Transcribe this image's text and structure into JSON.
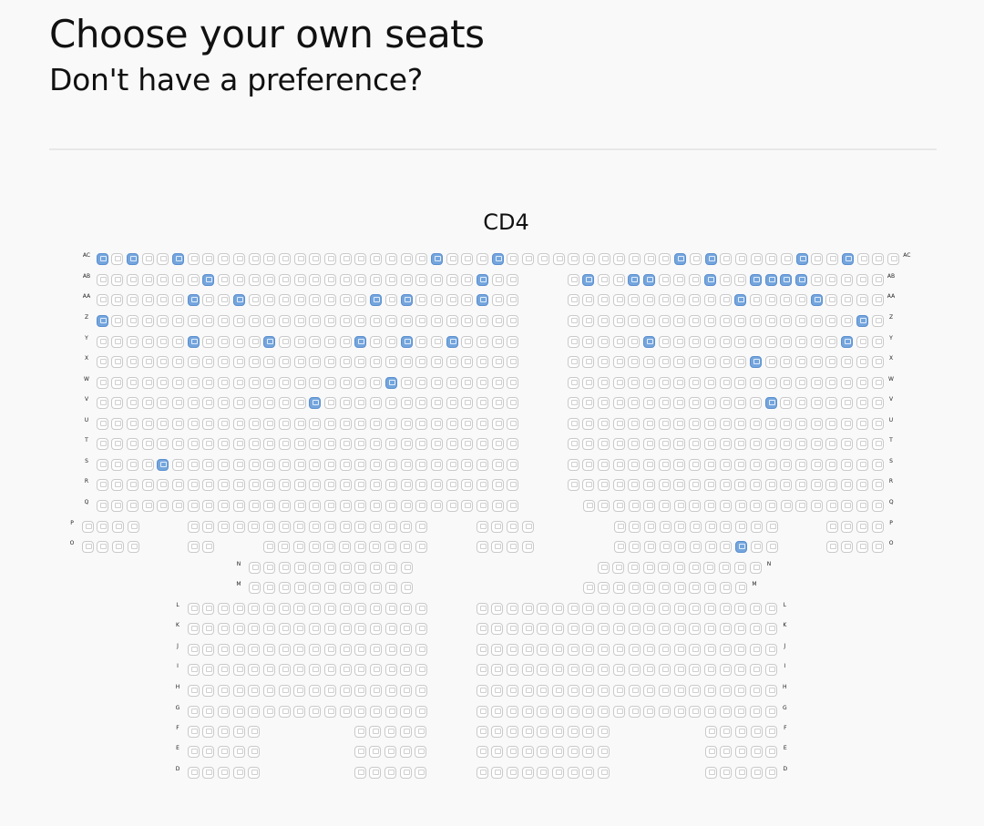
{
  "header": {
    "title": "Choose your own seats",
    "subtitle": "Don't have a preference?"
  },
  "section": {
    "name": "CD4"
  },
  "seat_map": {
    "rows": [
      {
        "label": "AC",
        "y": 284,
        "left": [
          [
            112,
            982
          ]
        ],
        "right": [],
        "avail": [
          112,
          145,
          195,
          479,
          546,
          746,
          780,
          880,
          930
        ]
      },
      {
        "label": "AB",
        "y": 307,
        "left": [
          [
            112,
            563
          ]
        ],
        "right": [
          [
            629,
            965
          ]
        ],
        "avail": [
          229,
          529,
          646,
          696,
          713,
          780,
          830,
          847,
          863,
          880
        ]
      },
      {
        "label": "AA",
        "y": 329,
        "left": [
          [
            112,
            563
          ]
        ],
        "right": [
          [
            629,
            965
          ]
        ],
        "avail": [
          212,
          262,
          412,
          446,
          529,
          813,
          897
        ]
      },
      {
        "label": "Z",
        "y": 352,
        "left": [
          [
            112,
            563
          ]
        ],
        "right": [
          [
            629,
            965
          ]
        ],
        "avail": [
          112,
          947
        ]
      },
      {
        "label": "Y",
        "y": 375,
        "left": [
          [
            112,
            563
          ]
        ],
        "right": [
          [
            629,
            965
          ]
        ],
        "avail": [
          212,
          295,
          395,
          446,
          496,
          713,
          930
        ]
      },
      {
        "label": "X",
        "y": 397,
        "left": [
          [
            112,
            563
          ]
        ],
        "right": [
          [
            629,
            965
          ]
        ],
        "avail": [
          830
        ]
      },
      {
        "label": "W",
        "y": 420,
        "left": [
          [
            112,
            563
          ]
        ],
        "right": [
          [
            629,
            965
          ]
        ],
        "avail": [
          429
        ]
      },
      {
        "label": "V",
        "y": 442,
        "left": [
          [
            112,
            563
          ]
        ],
        "right": [
          [
            629,
            965
          ]
        ],
        "avail": [
          345,
          847
        ]
      },
      {
        "label": "U",
        "y": 465,
        "left": [
          [
            112,
            563
          ]
        ],
        "right": [
          [
            629,
            965
          ]
        ],
        "avail": []
      },
      {
        "label": "T",
        "y": 487,
        "left": [
          [
            112,
            563
          ]
        ],
        "right": [
          [
            629,
            965
          ]
        ],
        "avail": []
      },
      {
        "label": "S",
        "y": 510,
        "left": [
          [
            112,
            563
          ]
        ],
        "right": [
          [
            629,
            965
          ]
        ],
        "avail": [
          179
        ]
      },
      {
        "label": "R",
        "y": 532,
        "left": [
          [
            112,
            563
          ]
        ],
        "right": [
          [
            629,
            965
          ]
        ],
        "avail": []
      },
      {
        "label": "Q",
        "y": 555,
        "left": [
          [
            112,
            563
          ]
        ],
        "right": [
          [
            646,
            965
          ]
        ],
        "avail": []
      },
      {
        "label": "P",
        "y": 578,
        "left": [
          [
            96,
            146
          ],
          [
            212,
            463
          ],
          [
            529,
            579
          ]
        ],
        "right": [
          [
            680,
            847
          ],
          [
            913,
            963
          ]
        ],
        "avail": []
      },
      {
        "label": "O",
        "y": 600,
        "left": [
          [
            96,
            146
          ],
          [
            212,
            229
          ],
          [
            295,
            463
          ],
          [
            529,
            579
          ]
        ],
        "right": [
          [
            680,
            847
          ],
          [
            913,
            963
          ]
        ],
        "avail": [
          813
        ]
      },
      {
        "label": "N",
        "y": 623,
        "left": [
          [
            279,
            446
          ]
        ],
        "right": [
          [
            662,
            830
          ]
        ],
        "avail": []
      },
      {
        "label": "M",
        "y": 645,
        "left": [
          [
            279,
            446
          ]
        ],
        "right": [
          [
            646,
            813
          ]
        ],
        "avail": []
      },
      {
        "label": "L",
        "y": 668,
        "left": [
          [
            212,
            463
          ]
        ],
        "right": [
          [
            529,
            847
          ]
        ],
        "avail": []
      },
      {
        "label": "K",
        "y": 690,
        "left": [
          [
            212,
            463
          ]
        ],
        "right": [
          [
            529,
            847
          ]
        ],
        "avail": []
      },
      {
        "label": "J",
        "y": 713,
        "left": [
          [
            212,
            463
          ]
        ],
        "right": [
          [
            529,
            847
          ]
        ],
        "avail": []
      },
      {
        "label": "I",
        "y": 735,
        "left": [
          [
            212,
            463
          ]
        ],
        "right": [
          [
            529,
            847
          ]
        ],
        "avail": []
      },
      {
        "label": "H",
        "y": 758,
        "left": [
          [
            212,
            463
          ]
        ],
        "right": [
          [
            529,
            847
          ]
        ],
        "avail": []
      },
      {
        "label": "G",
        "y": 781,
        "left": [
          [
            212,
            463
          ]
        ],
        "right": [
          [
            529,
            847
          ]
        ],
        "avail": []
      },
      {
        "label": "F",
        "y": 803,
        "left": [
          [
            212,
            279
          ],
          [
            395,
            463
          ]
        ],
        "right": [
          [
            529,
            663
          ],
          [
            780,
            847
          ]
        ],
        "avail": []
      },
      {
        "label": "E",
        "y": 825,
        "left": [
          [
            212,
            279
          ],
          [
            395,
            463
          ]
        ],
        "right": [
          [
            529,
            663
          ],
          [
            780,
            847
          ]
        ],
        "avail": []
      },
      {
        "label": "D",
        "y": 848,
        "left": [
          [
            212,
            279
          ],
          [
            395,
            463
          ]
        ],
        "right": [
          [
            529,
            663
          ],
          [
            780,
            847
          ]
        ],
        "avail": []
      }
    ],
    "seat_step": 16.7,
    "colors": {
      "available": "#74a5dd",
      "unavailable": "#ffffff"
    }
  }
}
